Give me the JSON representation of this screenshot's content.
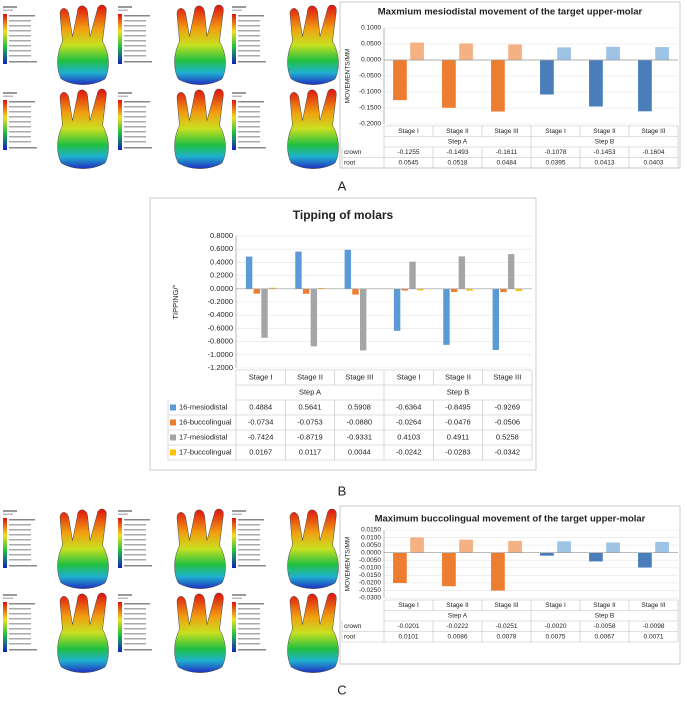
{
  "chart_data": [
    {
      "type": "bar_table",
      "panel_label": "A",
      "title": "Maxmium mesiodistal movement of the target upper-molar",
      "y_label": "MOVEMENTS/MM",
      "categories": [
        "Stage I",
        "Stage II",
        "Stage III",
        "Stage I",
        "Stage II",
        "Stage III"
      ],
      "groups": [
        "Step A",
        "Step B"
      ],
      "series": [
        {
          "name": "crown",
          "colors": [
            "#ED7D31",
            "#4A7EBB"
          ],
          "values": [
            -0.1255,
            -0.1493,
            -0.1611,
            -0.1078,
            -0.1453,
            -0.1604
          ],
          "value_labels": [
            "-0.1255",
            "-0.1493",
            "-0.1611",
            "-0.1078",
            "-0.1453",
            "-0.1604"
          ]
        },
        {
          "name": "root",
          "colors": [
            "#F4B183",
            "#9DC3E6"
          ],
          "values": [
            0.0545,
            0.0518,
            0.0484,
            0.0395,
            0.0413,
            0.0403
          ],
          "value_labels": [
            "0.0545",
            "0.0518",
            "0.0484",
            "0.0395",
            "0.0413",
            "0.0403"
          ]
        }
      ],
      "ylim": [
        -0.2,
        0.1
      ],
      "yticks": [
        {
          "value": 0.1,
          "label": "0.1000"
        },
        {
          "value": 0.05,
          "label": "0.0500"
        },
        {
          "value": 0,
          "label": "0.0000"
        },
        {
          "value": -0.05,
          "label": "-0.0500"
        },
        {
          "value": -0.1,
          "label": "-0.1000"
        },
        {
          "value": -0.15,
          "label": "-0.1500"
        },
        {
          "value": -0.2,
          "label": "-0.2000"
        }
      ],
      "grid": true
    },
    {
      "type": "bar_table",
      "panel_label": "B",
      "title": "Tipping of molars",
      "y_label": "TIPPING/°",
      "categories": [
        "Stage I",
        "Stage II",
        "Stage III",
        "Stage I",
        "Stage II",
        "Stage III"
      ],
      "groups": [
        "Step A",
        "Step B"
      ],
      "series": [
        {
          "name": "16-mesiodistal",
          "color": "#5B9BD5",
          "values": [
            0.4884,
            0.5641,
            0.5908,
            -0.6364,
            -0.8495,
            -0.9269
          ],
          "value_labels": [
            "0.4884",
            "0.5641",
            "0.5908",
            "-0.6364",
            "-0.8495",
            "-0.9269"
          ]
        },
        {
          "name": "16-buccolingual",
          "color": "#ED7D31",
          "values": [
            -0.0734,
            -0.0753,
            -0.088,
            -0.0264,
            -0.0476,
            -0.0506
          ],
          "value_labels": [
            "-0.0734",
            "-0.0753",
            "-0.0880",
            "-0.0264",
            "-0.0476",
            "-0.0506"
          ]
        },
        {
          "name": "17-mesiodistal",
          "color": "#A5A5A5",
          "values": [
            -0.7424,
            -0.8719,
            -0.9331,
            0.4103,
            0.4911,
            0.5258
          ],
          "value_labels": [
            "-0.7424",
            "-0.8719",
            "-0.9331",
            "0.4103",
            "0.4911",
            "0.5258"
          ]
        },
        {
          "name": "17-buccolingual",
          "color": "#FFC000",
          "values": [
            0.0167,
            0.0117,
            0.0044,
            -0.0242,
            -0.0283,
            -0.0342
          ],
          "value_labels": [
            "0.0167",
            "0.0117",
            "0.0044",
            "-0.0242",
            "-0.0283",
            "-0.0342"
          ]
        }
      ],
      "ylim": [
        -1.2,
        0.8
      ],
      "yticks": [
        {
          "value": 0.8,
          "label": "0.8000"
        },
        {
          "value": 0.6,
          "label": "0.6000"
        },
        {
          "value": 0.4,
          "label": "0.4000"
        },
        {
          "value": 0.2,
          "label": "0.2000"
        },
        {
          "value": 0,
          "label": "0.0000"
        },
        {
          "value": -0.2,
          "label": "-0.2000"
        },
        {
          "value": -0.4,
          "label": "-0.4000"
        },
        {
          "value": -0.6,
          "label": "-0.6000"
        },
        {
          "value": -0.8,
          "label": "-0.8000"
        },
        {
          "value": -1,
          "label": "-1.0000"
        },
        {
          "value": -1.2,
          "label": "-1.2000"
        }
      ],
      "grid": true
    },
    {
      "type": "bar_table",
      "panel_label": "C",
      "title": "Maximum buccolingual movement of the target upper-molar",
      "y_label": "MOVEMENTS/MM",
      "categories": [
        "Stage I",
        "Stage II",
        "Stage III",
        "Stage I",
        "Stage II",
        "Stage III"
      ],
      "groups": [
        "Step A",
        "Step B"
      ],
      "series": [
        {
          "name": "crown",
          "colors": [
            "#ED7D31",
            "#4A7EBB"
          ],
          "values": [
            -0.0201,
            -0.0222,
            -0.0251,
            -0.002,
            -0.0058,
            -0.0098
          ],
          "value_labels": [
            "-0.0201",
            "-0.0222",
            "-0.0251",
            "-0.0020",
            "-0.0058",
            "-0.0098"
          ]
        },
        {
          "name": "root",
          "colors": [
            "#F4B183",
            "#9DC3E6"
          ],
          "values": [
            0.0101,
            0.0086,
            0.0078,
            0.0075,
            0.0067,
            0.0071
          ],
          "value_labels": [
            "0.0101",
            "0.0086",
            "0.0078",
            "0.0075",
            "0.0067",
            "0.0071"
          ]
        }
      ],
      "ylim": [
        -0.03,
        0.015
      ],
      "yticks": [
        {
          "value": 0.015,
          "label": "0.0150"
        },
        {
          "value": 0.01,
          "label": "0.0100"
        },
        {
          "value": 0.005,
          "label": "0.0050"
        },
        {
          "value": 0,
          "label": "0.0000"
        },
        {
          "value": -0.005,
          "label": "-0.0050"
        },
        {
          "value": -0.01,
          "label": "-0.0100"
        },
        {
          "value": -0.015,
          "label": "-0.0150"
        },
        {
          "value": -0.02,
          "label": "-0.0200"
        },
        {
          "value": -0.025,
          "label": "-0.0250"
        },
        {
          "value": -0.03,
          "label": "-0.0300"
        }
      ],
      "grid": true
    }
  ]
}
